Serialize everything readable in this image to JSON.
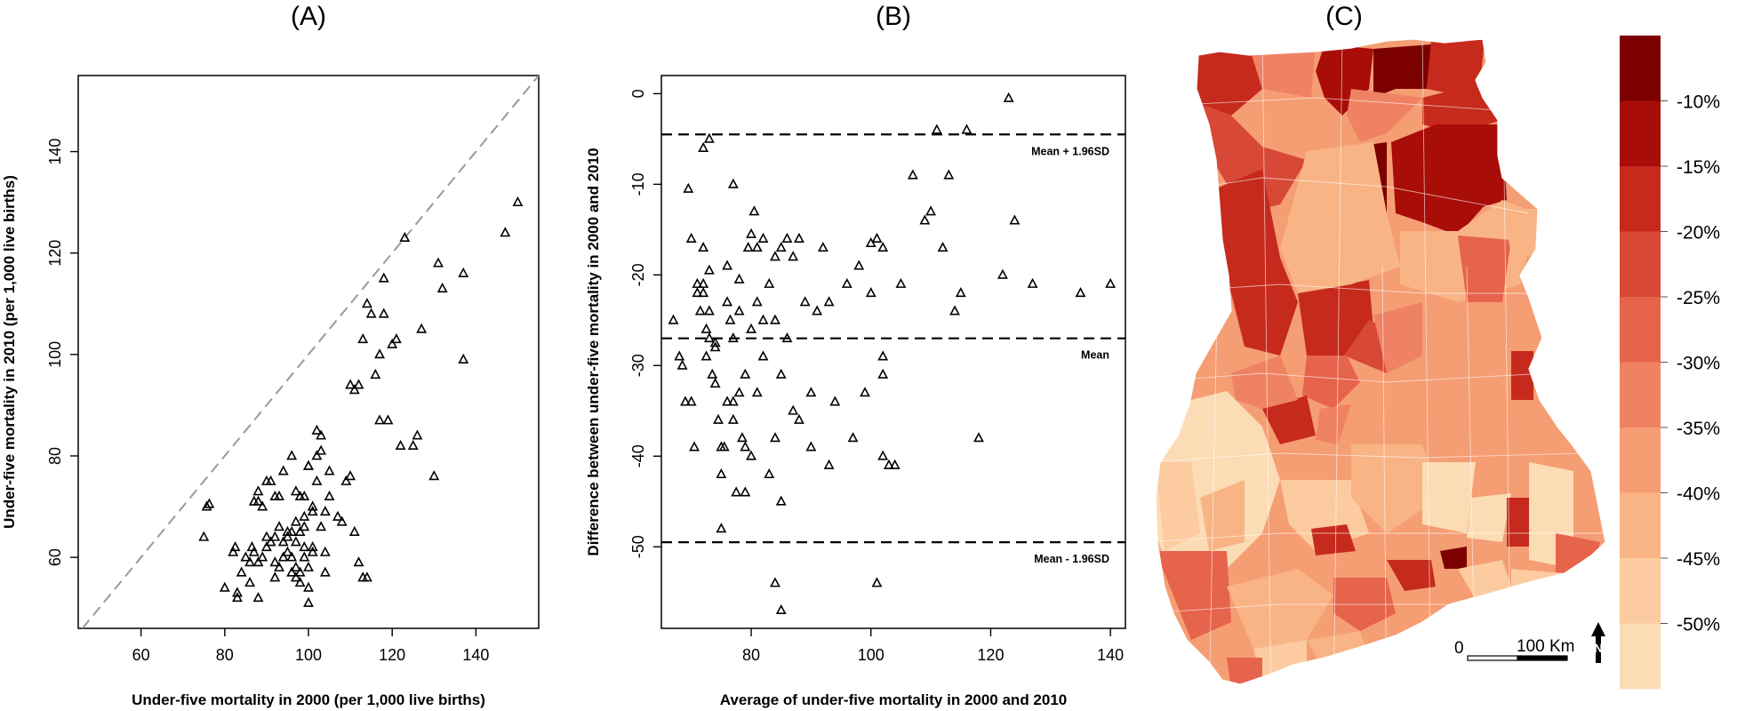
{
  "colors": {
    "map_scale": [
      "#fcdcb4",
      "#fccba0",
      "#f9b485",
      "#f59d73",
      "#ef8262",
      "#e6634c",
      "#d84836",
      "#c62a1d",
      "#a80d08",
      "#7c0000"
    ]
  },
  "chart_data": [
    {
      "type": "scatter",
      "title": "(A)",
      "xlabel": "Under-five mortality in 2000 (per 1,000 live births)",
      "ylabel": "Under-five mortality in 2010 (per 1,000 live births)",
      "xlim": [
        45,
        155
      ],
      "ylim": [
        46,
        155
      ],
      "xticks": [
        60,
        80,
        100,
        120,
        140
      ],
      "yticks": [
        60,
        80,
        100,
        120,
        140
      ],
      "reference_line": "y = x",
      "marker": "open-triangle",
      "x": [
        75,
        75.7,
        76.3,
        80,
        82,
        82.5,
        83,
        83,
        84,
        85,
        86,
        86,
        87,
        87,
        88,
        88,
        89,
        89,
        90,
        90,
        91,
        91,
        92,
        92,
        93,
        93,
        94,
        94,
        95,
        95,
        96,
        96,
        96,
        97,
        97,
        97,
        98,
        98,
        98,
        99,
        99,
        99,
        100,
        100,
        100,
        100,
        101,
        101,
        102,
        102,
        103,
        103,
        104,
        104,
        105,
        107,
        108,
        109,
        110,
        110,
        111,
        111,
        112,
        112,
        113,
        113,
        114,
        114,
        115,
        116,
        117,
        117,
        118,
        118,
        119,
        120,
        121,
        122,
        123,
        125,
        126,
        127,
        130,
        131,
        132,
        137,
        137,
        147,
        150,
        86.5,
        88,
        90,
        92,
        93,
        94,
        95,
        96,
        97,
        98,
        99,
        100,
        101,
        102,
        103,
        104,
        105,
        88,
        92,
        99,
        101,
        97
      ],
      "y": [
        64,
        70,
        70.5,
        54,
        61,
        62,
        53,
        52,
        57,
        60,
        55,
        59,
        71,
        61,
        52,
        73,
        60,
        70,
        64,
        75,
        63,
        75,
        59,
        56,
        72,
        66,
        63,
        77,
        61,
        65,
        80,
        57,
        60,
        63,
        67,
        73,
        55,
        57,
        65,
        62,
        68,
        72,
        51,
        54,
        58,
        78,
        61,
        69,
        85,
        80,
        84,
        81,
        61,
        57,
        77,
        68,
        67,
        75,
        76,
        94,
        65,
        93,
        59,
        94,
        56,
        103,
        56,
        110,
        108,
        96,
        87,
        100,
        108,
        115,
        87,
        102,
        103,
        82,
        123,
        82,
        84,
        105,
        76,
        118,
        113,
        116,
        99,
        124,
        130,
        62,
        71,
        62,
        72,
        58,
        60,
        64,
        65,
        58,
        72,
        66,
        78,
        62,
        75,
        66,
        69,
        72,
        59,
        64,
        60,
        70,
        56
      ]
    },
    {
      "type": "scatter",
      "title": "(B)",
      "xlabel": "Average of under-five mortality in 2000 and 2010",
      "ylabel": "Difference between under-five mortality in 2000 and 2010",
      "xlim": [
        65,
        142.5
      ],
      "ylim": [
        -59,
        2
      ],
      "xticks": [
        80,
        100,
        120,
        140
      ],
      "yticks": [
        0,
        -10,
        -20,
        -30,
        -40,
        -50
      ],
      "reference_lines": [
        {
          "y": -4.5,
          "label": "Mean + 1.96SD"
        },
        {
          "y": -27,
          "label": "Mean"
        },
        {
          "y": -49.5,
          "label": "Mean - 1.96SD"
        }
      ],
      "marker": "open-triangle",
      "x": [
        67,
        68,
        68.5,
        69,
        69.5,
        70,
        70,
        70.5,
        71,
        71,
        71.5,
        72,
        72,
        72,
        72.5,
        72.5,
        73,
        73,
        73,
        73.5,
        74,
        74,
        74,
        74.5,
        75,
        75,
        75,
        75.5,
        76,
        76,
        76,
        76.5,
        77,
        77,
        77,
        77.5,
        78,
        78,
        78,
        78.5,
        79,
        79,
        79,
        79.5,
        80,
        80,
        80,
        80.5,
        81,
        81,
        81,
        82,
        82,
        82,
        83,
        83,
        84,
        84,
        84,
        85,
        85,
        85,
        86,
        86,
        87,
        87,
        88,
        88,
        89,
        90,
        90,
        91,
        92,
        93,
        93,
        94,
        96,
        97,
        98,
        99,
        100,
        101,
        102,
        102,
        102,
        103,
        104,
        105,
        107,
        109,
        110,
        111,
        112,
        113,
        114,
        115,
        116,
        118,
        122,
        123,
        124,
        127,
        135,
        140,
        100,
        102,
        101,
        84,
        85,
        72,
        73,
        77
      ],
      "y": [
        -25,
        -29,
        -30,
        -34,
        -10.5,
        -34,
        -16,
        -39,
        -22,
        -21,
        -24,
        -21,
        -17,
        -22,
        -29,
        -26,
        -24,
        -27,
        -19.5,
        -31,
        -28,
        -32,
        -27.5,
        -36,
        -39,
        -42,
        -48,
        -39,
        -23,
        -34,
        -19,
        -25,
        -27,
        -10,
        -36,
        -44,
        -24,
        -33,
        -20.5,
        -38,
        -39,
        -44,
        -31,
        -17,
        -15.5,
        -26,
        -40,
        -13,
        -17,
        -23,
        -33,
        -16,
        -25,
        -29,
        -21,
        -42,
        -18,
        -25,
        -38,
        -17,
        -31,
        -45,
        -16,
        -27,
        -18,
        -35,
        -16,
        -36,
        -23,
        -39,
        -33,
        -24,
        -17,
        -41,
        -23,
        -34,
        -21,
        -38,
        -19,
        -33,
        -22,
        -16,
        -31,
        -29,
        -40,
        -41,
        -41,
        -21,
        -9,
        -14,
        -13,
        -4,
        -17,
        -9,
        -24,
        -22,
        -4,
        -38,
        -20,
        -0.5,
        -14,
        -21,
        -22,
        -21,
        -16.5,
        -17,
        -54,
        -54,
        -57,
        -6,
        -5,
        -34
      ]
    }
  ],
  "panel_c": {
    "title": "(C)",
    "legend_labels": [
      "-10%",
      "-15%",
      "-20%",
      "-25%",
      "-30%",
      "-35%",
      "-40%",
      "-45%",
      "-50%"
    ],
    "scale_zero": "0",
    "scale_label": "100 Km",
    "north_label": "N"
  }
}
